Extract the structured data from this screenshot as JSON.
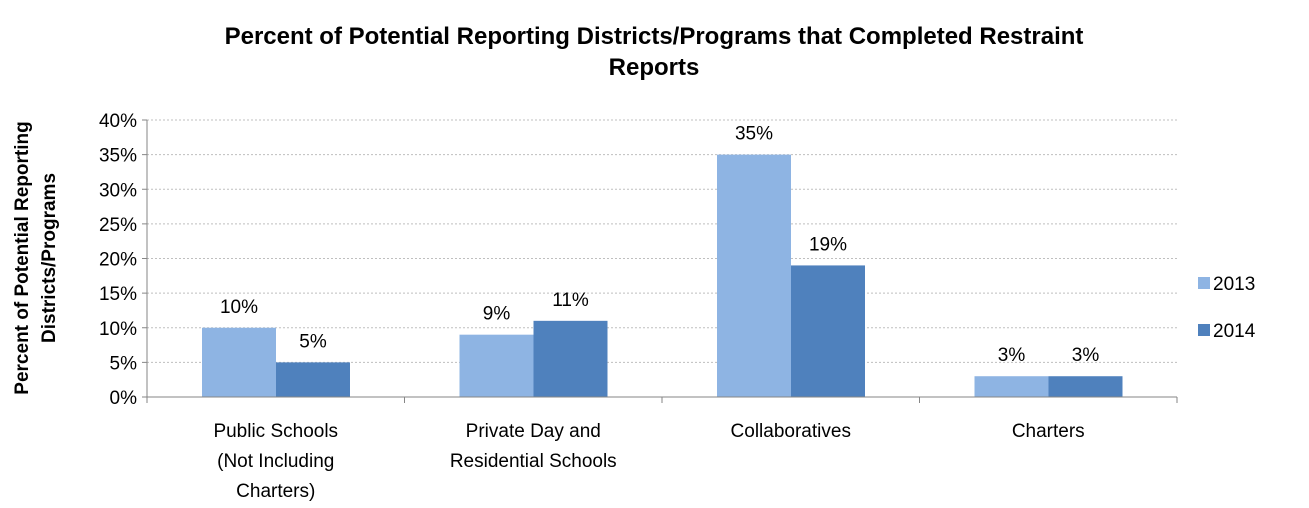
{
  "chart_data": {
    "type": "bar",
    "title_lines": [
      "Percent of Potential Reporting Districts/Programs that Completed Restraint",
      "Reports"
    ],
    "ylabel_lines": [
      "Percent of Potential Reporting",
      "Districts/Programs"
    ],
    "xlabel": "",
    "categories": [
      [
        "Public Schools",
        "(Not Including",
        "Charters)"
      ],
      [
        "Private Day and",
        "Residential Schools"
      ],
      [
        "Collaboratives"
      ],
      [
        "Charters"
      ]
    ],
    "series": [
      {
        "name": "2013",
        "color": "#8EB4E3",
        "values": [
          10,
          9,
          35,
          3
        ],
        "labels": [
          "10%",
          "9%",
          "35%",
          "3%"
        ]
      },
      {
        "name": "2014",
        "color": "#4F81BD",
        "values": [
          5,
          11,
          19,
          3
        ],
        "labels": [
          "5%",
          "11%",
          "19%",
          "3%"
        ]
      }
    ],
    "ylim": [
      0,
      40
    ],
    "yticks": [
      0,
      5,
      10,
      15,
      20,
      25,
      30,
      35,
      40
    ],
    "ytick_labels": [
      "0%",
      "5%",
      "10%",
      "15%",
      "20%",
      "25%",
      "30%",
      "35%",
      "40%"
    ],
    "grid": true,
    "legend_position": "right"
  }
}
